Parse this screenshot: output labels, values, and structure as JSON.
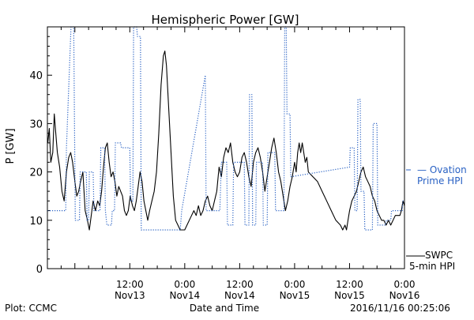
{
  "chart_data": {
    "type": "line",
    "title": "Hemispheric Power [GW]",
    "xlabel": "Date and Time",
    "ylabel": "P [GW]",
    "ylim": [
      0,
      50
    ],
    "yticks": [
      0,
      10,
      20,
      30,
      40
    ],
    "xlim": [
      "2016-11-12 18:00",
      "2016-11-16 00:00"
    ],
    "xticks": [
      {
        "at": "2016-11-13 12:00",
        "line1": "12:00",
        "line2": "Nov13"
      },
      {
        "at": "2016-11-14 00:00",
        "line1": "0:00",
        "line2": "Nov14"
      },
      {
        "at": "2016-11-14 12:00",
        "line1": "12:00",
        "line2": "Nov14"
      },
      {
        "at": "2016-11-15 00:00",
        "line1": "0:00",
        "line2": "Nov15"
      },
      {
        "at": "2016-11-15 12:00",
        "line1": "12:00",
        "line2": "Nov15"
      },
      {
        "at": "2016-11-16 00:00",
        "line1": "0:00",
        "line2": "Nov16"
      }
    ],
    "legend_placement": "right",
    "series": [
      {
        "name": "SWPC 5-min HPI",
        "legend_line1": "SWPC",
        "legend_line2": "5-min HPI",
        "style": "solid",
        "color": "#000000",
        "points": [
          [
            "2016-11-12 18:05",
            26
          ],
          [
            "2016-11-12 18:25",
            29
          ],
          [
            "2016-11-12 18:45",
            22
          ],
          [
            "2016-11-12 19:10",
            24
          ],
          [
            "2016-11-12 19:30",
            32
          ],
          [
            "2016-11-12 19:50",
            28
          ],
          [
            "2016-11-12 20:10",
            24
          ],
          [
            "2016-11-12 20:40",
            21
          ],
          [
            "2016-11-12 21:10",
            16
          ],
          [
            "2016-11-12 21:40",
            14
          ],
          [
            "2016-11-12 22:10",
            20
          ],
          [
            "2016-11-12 22:40",
            23
          ],
          [
            "2016-11-12 23:05",
            24
          ],
          [
            "2016-11-12 23:30",
            22
          ],
          [
            "2016-11-13 00:00",
            18
          ],
          [
            "2016-11-13 00:25",
            15
          ],
          [
            "2016-11-13 00:50",
            16
          ],
          [
            "2016-11-13 01:15",
            18
          ],
          [
            "2016-11-13 01:45",
            20
          ],
          [
            "2016-11-13 02:15",
            12
          ],
          [
            "2016-11-13 02:45",
            10
          ],
          [
            "2016-11-13 03:10",
            8
          ],
          [
            "2016-11-13 03:35",
            11
          ],
          [
            "2016-11-13 04:00",
            14
          ],
          [
            "2016-11-13 04:30",
            12
          ],
          [
            "2016-11-13 05:00",
            14
          ],
          [
            "2016-11-13 05:25",
            13
          ],
          [
            "2016-11-13 05:50",
            16
          ],
          [
            "2016-11-13 06:15",
            21
          ],
          [
            "2016-11-13 06:40",
            25
          ],
          [
            "2016-11-13 07:05",
            26
          ],
          [
            "2016-11-13 07:30",
            22
          ],
          [
            "2016-11-13 07:55",
            19
          ],
          [
            "2016-11-13 08:20",
            20
          ],
          [
            "2016-11-13 08:45",
            18
          ],
          [
            "2016-11-13 09:10",
            15
          ],
          [
            "2016-11-13 09:35",
            17
          ],
          [
            "2016-11-13 10:00",
            16
          ],
          [
            "2016-11-13 10:25",
            15
          ],
          [
            "2016-11-13 10:50",
            12
          ],
          [
            "2016-11-13 11:15",
            11
          ],
          [
            "2016-11-13 11:40",
            12
          ],
          [
            "2016-11-13 12:05",
            15
          ],
          [
            "2016-11-13 12:35",
            13
          ],
          [
            "2016-11-13 13:00",
            12
          ],
          [
            "2016-11-13 13:25",
            14
          ],
          [
            "2016-11-13 13:50",
            17
          ],
          [
            "2016-11-13 14:15",
            20
          ],
          [
            "2016-11-13 14:40",
            18
          ],
          [
            "2016-11-13 15:05",
            14
          ],
          [
            "2016-11-13 15:30",
            12
          ],
          [
            "2016-11-13 15:55",
            10
          ],
          [
            "2016-11-13 16:20",
            12
          ],
          [
            "2016-11-13 16:50",
            14
          ],
          [
            "2016-11-13 17:20",
            16
          ],
          [
            "2016-11-13 17:50",
            20
          ],
          [
            "2016-11-13 18:20",
            28
          ],
          [
            "2016-11-13 18:50",
            38
          ],
          [
            "2016-11-13 19:20",
            44
          ],
          [
            "2016-11-13 19:40",
            45
          ],
          [
            "2016-11-13 20:00",
            42
          ],
          [
            "2016-11-13 20:30",
            33
          ],
          [
            "2016-11-13 21:00",
            24
          ],
          [
            "2016-11-13 21:30",
            15
          ],
          [
            "2016-11-13 22:00",
            10
          ],
          [
            "2016-11-13 22:30",
            9
          ],
          [
            "2016-11-13 23:00",
            8
          ],
          [
            "2016-11-13 23:30",
            8
          ],
          [
            "2016-11-14 00:00",
            8
          ],
          [
            "2016-11-14 00:30",
            9
          ],
          [
            "2016-11-14 01:00",
            10
          ],
          [
            "2016-11-14 01:30",
            11
          ],
          [
            "2016-11-14 02:00",
            12
          ],
          [
            "2016-11-14 02:30",
            11
          ],
          [
            "2016-11-14 03:00",
            13
          ],
          [
            "2016-11-14 03:30",
            11
          ],
          [
            "2016-11-14 04:00",
            12
          ],
          [
            "2016-11-14 04:30",
            14
          ],
          [
            "2016-11-14 05:00",
            15
          ],
          [
            "2016-11-14 05:30",
            13
          ],
          [
            "2016-11-14 06:00",
            12
          ],
          [
            "2016-11-14 06:30",
            14
          ],
          [
            "2016-11-14 07:00",
            16
          ],
          [
            "2016-11-14 07:30",
            21
          ],
          [
            "2016-11-14 08:00",
            19
          ],
          [
            "2016-11-14 08:30",
            23
          ],
          [
            "2016-11-14 09:00",
            25
          ],
          [
            "2016-11-14 09:30",
            24
          ],
          [
            "2016-11-14 10:00",
            26
          ],
          [
            "2016-11-14 10:30",
            22
          ],
          [
            "2016-11-14 11:00",
            20
          ],
          [
            "2016-11-14 11:30",
            19
          ],
          [
            "2016-11-14 12:00",
            20
          ],
          [
            "2016-11-14 12:30",
            23
          ],
          [
            "2016-11-14 13:00",
            24
          ],
          [
            "2016-11-14 13:30",
            22
          ],
          [
            "2016-11-14 14:00",
            19
          ],
          [
            "2016-11-14 14:30",
            17
          ],
          [
            "2016-11-14 15:00",
            22
          ],
          [
            "2016-11-14 15:30",
            24
          ],
          [
            "2016-11-14 16:00",
            25
          ],
          [
            "2016-11-14 16:30",
            23
          ],
          [
            "2016-11-14 17:00",
            20
          ],
          [
            "2016-11-14 17:30",
            16
          ],
          [
            "2016-11-14 18:00",
            19
          ],
          [
            "2016-11-14 18:30",
            22
          ],
          [
            "2016-11-14 19:00",
            25
          ],
          [
            "2016-11-14 19:30",
            27
          ],
          [
            "2016-11-14 20:00",
            24
          ],
          [
            "2016-11-14 20:30",
            20
          ],
          [
            "2016-11-14 21:00",
            18
          ],
          [
            "2016-11-14 21:30",
            15
          ],
          [
            "2016-11-14 22:00",
            12
          ],
          [
            "2016-11-14 22:30",
            14
          ],
          [
            "2016-11-14 23:00",
            17
          ],
          [
            "2016-11-14 23:30",
            19
          ],
          [
            "2016-11-15 00:00",
            22
          ],
          [
            "2016-11-15 00:20",
            20
          ],
          [
            "2016-11-15 00:40",
            24
          ],
          [
            "2016-11-15 01:00",
            26
          ],
          [
            "2016-11-15 01:20",
            24
          ],
          [
            "2016-11-15 01:40",
            26
          ],
          [
            "2016-11-15 02:00",
            24
          ],
          [
            "2016-11-15 02:20",
            22
          ],
          [
            "2016-11-15 02:40",
            23
          ],
          [
            "2016-11-15 03:00",
            20
          ],
          [
            "2016-11-15 04:00",
            19
          ],
          [
            "2016-11-15 05:00",
            18
          ],
          [
            "2016-11-15 06:00",
            16
          ],
          [
            "2016-11-15 07:00",
            14
          ],
          [
            "2016-11-15 08:00",
            12
          ],
          [
            "2016-11-15 09:00",
            10
          ],
          [
            "2016-11-15 10:00",
            9
          ],
          [
            "2016-11-15 10:30",
            8
          ],
          [
            "2016-11-15 11:00",
            9
          ],
          [
            "2016-11-15 11:20",
            8
          ],
          [
            "2016-11-15 11:40",
            10
          ],
          [
            "2016-11-15 12:00",
            12
          ],
          [
            "2016-11-15 12:30",
            14
          ],
          [
            "2016-11-15 13:00",
            15
          ],
          [
            "2016-11-15 13:30",
            16
          ],
          [
            "2016-11-15 14:00",
            18
          ],
          [
            "2016-11-15 14:30",
            20
          ],
          [
            "2016-11-15 15:00",
            21
          ],
          [
            "2016-11-15 15:30",
            19
          ],
          [
            "2016-11-15 16:00",
            18
          ],
          [
            "2016-11-15 16:30",
            17
          ],
          [
            "2016-11-15 17:00",
            15
          ],
          [
            "2016-11-15 17:30",
            14
          ],
          [
            "2016-11-15 18:00",
            12
          ],
          [
            "2016-11-15 18:30",
            11
          ],
          [
            "2016-11-15 19:00",
            10
          ],
          [
            "2016-11-15 19:30",
            10
          ],
          [
            "2016-11-15 20:00",
            9
          ],
          [
            "2016-11-15 20:30",
            10
          ],
          [
            "2016-11-15 21:00",
            9
          ],
          [
            "2016-11-15 21:30",
            10
          ],
          [
            "2016-11-15 22:00",
            11
          ],
          [
            "2016-11-15 22:30",
            11
          ],
          [
            "2016-11-15 23:00",
            11
          ],
          [
            "2016-11-15 23:20",
            12
          ],
          [
            "2016-11-15 23:40",
            14
          ],
          [
            "2016-11-16 00:00",
            13
          ]
        ]
      },
      {
        "name": "Ovation Prime HPI",
        "legend_line1": "— Ovation",
        "legend_line2": "Prime HPI",
        "style": "dotted",
        "color": "#2a62c4",
        "points": [
          [
            "2016-11-12 18:00",
            12
          ],
          [
            "2016-11-12 22:00",
            12
          ],
          [
            "2016-11-12 22:10",
            25
          ],
          [
            "2016-11-12 23:10",
            50
          ],
          [
            "2016-11-12 23:45",
            50
          ],
          [
            "2016-11-13 00:05",
            10
          ],
          [
            "2016-11-13 01:00",
            10
          ],
          [
            "2016-11-13 01:10",
            20
          ],
          [
            "2016-11-13 02:30",
            20
          ],
          [
            "2016-11-13 02:40",
            10
          ],
          [
            "2016-11-13 03:00",
            10
          ],
          [
            "2016-11-13 03:10",
            20
          ],
          [
            "2016-11-13 04:00",
            20
          ],
          [
            "2016-11-13 04:10",
            12
          ],
          [
            "2016-11-13 05:30",
            12
          ],
          [
            "2016-11-13 05:40",
            25
          ],
          [
            "2016-11-13 06:30",
            25
          ],
          [
            "2016-11-13 06:40",
            12
          ],
          [
            "2016-11-13 07:00",
            9
          ],
          [
            "2016-11-13 08:00",
            9
          ],
          [
            "2016-11-13 08:10",
            12
          ],
          [
            "2016-11-13 08:40",
            12
          ],
          [
            "2016-11-13 08:50",
            26
          ],
          [
            "2016-11-13 10:00",
            26
          ],
          [
            "2016-11-13 10:10",
            25
          ],
          [
            "2016-11-13 12:00",
            25
          ],
          [
            "2016-11-13 12:10",
            14
          ],
          [
            "2016-11-13 12:40",
            14
          ],
          [
            "2016-11-13 12:50",
            50
          ],
          [
            "2016-11-13 13:30",
            50
          ],
          [
            "2016-11-13 13:40",
            48
          ],
          [
            "2016-11-13 14:20",
            48
          ],
          [
            "2016-11-13 14:30",
            8
          ],
          [
            "2016-11-13 20:00",
            8
          ],
          [
            "2016-11-13 21:00",
            8
          ],
          [
            "2016-11-13 23:00",
            8
          ],
          [
            "2016-11-13 23:20",
            12
          ],
          [
            "2016-11-14 04:30",
            40
          ],
          [
            "2016-11-14 04:40",
            12
          ],
          [
            "2016-11-14 07:30",
            12
          ],
          [
            "2016-11-14 07:40",
            12
          ],
          [
            "2016-11-14 08:00",
            22
          ],
          [
            "2016-11-14 09:10",
            22
          ],
          [
            "2016-11-14 09:20",
            9
          ],
          [
            "2016-11-14 10:30",
            9
          ],
          [
            "2016-11-14 10:40",
            22
          ],
          [
            "2016-11-14 13:00",
            22
          ],
          [
            "2016-11-14 13:10",
            9
          ],
          [
            "2016-11-14 14:00",
            9
          ],
          [
            "2016-11-14 14:10",
            36
          ],
          [
            "2016-11-14 14:40",
            36
          ],
          [
            "2016-11-14 14:50",
            9
          ],
          [
            "2016-11-14 15:30",
            9
          ],
          [
            "2016-11-14 15:40",
            22
          ],
          [
            "2016-11-14 17:00",
            22
          ],
          [
            "2016-11-14 17:10",
            9
          ],
          [
            "2016-11-14 18:00",
            9
          ],
          [
            "2016-11-14 18:10",
            24
          ],
          [
            "2016-11-14 19:40",
            24
          ],
          [
            "2016-11-14 19:50",
            12
          ],
          [
            "2016-11-14 21:40",
            12
          ],
          [
            "2016-11-14 21:50",
            50
          ],
          [
            "2016-11-14 22:10",
            50
          ],
          [
            "2016-11-14 22:20",
            32
          ],
          [
            "2016-11-14 23:00",
            32
          ],
          [
            "2016-11-14 23:10",
            19
          ],
          [
            "2016-11-15 12:00",
            21
          ],
          [
            "2016-11-15 12:10",
            25
          ],
          [
            "2016-11-15 13:00",
            25
          ],
          [
            "2016-11-15 13:10",
            12
          ],
          [
            "2016-11-15 13:40",
            12
          ],
          [
            "2016-11-15 13:50",
            35
          ],
          [
            "2016-11-15 14:20",
            35
          ],
          [
            "2016-11-15 14:30",
            16
          ],
          [
            "2016-11-15 15:10",
            16
          ],
          [
            "2016-11-15 15:20",
            8
          ],
          [
            "2016-11-15 17:00",
            8
          ],
          [
            "2016-11-15 17:10",
            30
          ],
          [
            "2016-11-15 18:00",
            30
          ],
          [
            "2016-11-15 18:10",
            9
          ],
          [
            "2016-11-15 19:50",
            9
          ],
          [
            "2016-11-15 20:00",
            10
          ],
          [
            "2016-11-15 21:00",
            10
          ],
          [
            "2016-11-15 21:10",
            12
          ],
          [
            "2016-11-15 23:30",
            12
          ],
          [
            "2016-11-15 23:40",
            14
          ],
          [
            "2016-11-16 00:00",
            14
          ]
        ]
      }
    ]
  },
  "footer": {
    "left": "Plot: CCMC",
    "right": "2016/11/16 00:25:06"
  }
}
